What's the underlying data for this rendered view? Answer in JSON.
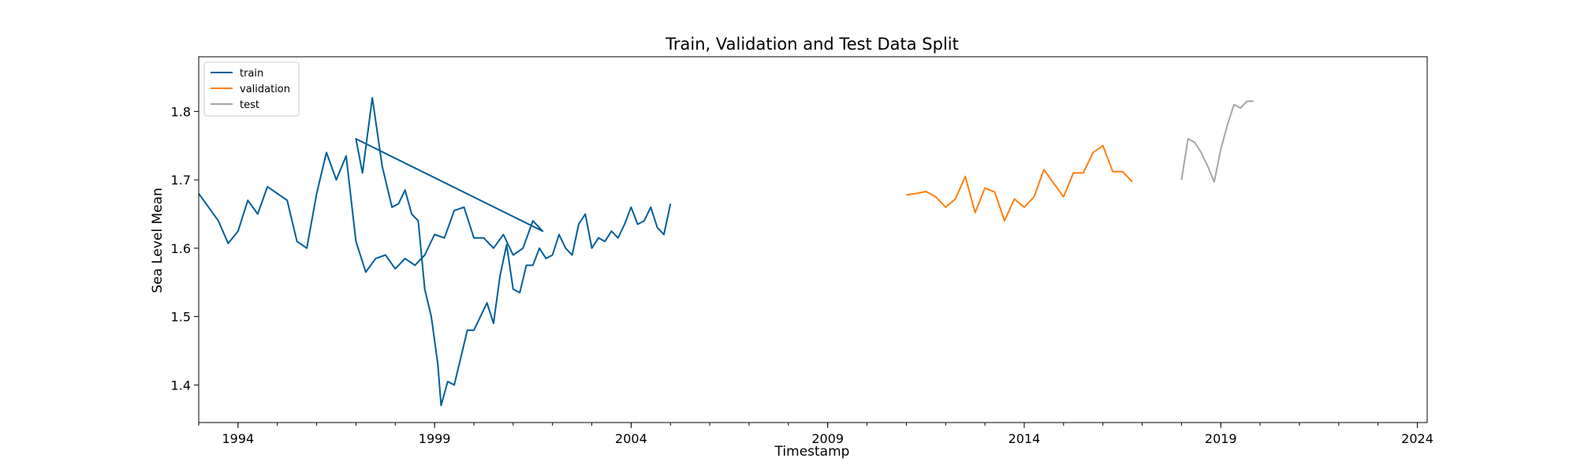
{
  "chart_data": {
    "type": "line",
    "title": "Train, Validation and Test Data Split",
    "xlabel": "Timestamp",
    "ylabel": "Sea Level Mean",
    "xlim": [
      "1993-01",
      "2024-04"
    ],
    "ylim": [
      1.345,
      1.88
    ],
    "grid": false,
    "legend_position": "top-left",
    "x_ticks": [
      "1994",
      "1999",
      "2004",
      "2009",
      "2014",
      "2019",
      "2024"
    ],
    "y_ticks": [
      "1.4",
      "1.5",
      "1.6",
      "1.7",
      "1.8"
    ],
    "series": [
      {
        "name": "train",
        "color": "#005f99",
        "points": [
          [
            "1993-01",
            1.68
          ],
          [
            "1993-04",
            1.66
          ],
          [
            "1993-07",
            1.64
          ],
          [
            "1993-10",
            1.607
          ],
          [
            "1994-01",
            1.625
          ],
          [
            "1994-04",
            1.67
          ],
          [
            "1994-07",
            1.65
          ],
          [
            "1994-10",
            1.69
          ],
          [
            "1995-01",
            1.68
          ],
          [
            "1995-04",
            1.67
          ],
          [
            "1995-07",
            1.61
          ],
          [
            "1995-10",
            1.6
          ],
          [
            "1996-01",
            1.68
          ],
          [
            "1996-04",
            1.74
          ],
          [
            "1996-07",
            1.7
          ],
          [
            "1996-10",
            1.735
          ],
          [
            "1997-01",
            1.61
          ],
          [
            "1997-04",
            1.565
          ],
          [
            "1997-07",
            1.585
          ],
          [
            "1997-10",
            1.59
          ],
          [
            "1998-01",
            1.57
          ],
          [
            "1998-04",
            1.585
          ],
          [
            "1998-07",
            1.575
          ],
          [
            "1998-10",
            1.59
          ],
          [
            "1999-01",
            1.62
          ],
          [
            "1999-04",
            1.615
          ],
          [
            "1999-07",
            1.655
          ],
          [
            "1999-10",
            1.66
          ],
          [
            "2000-01",
            1.615
          ],
          [
            "2000-04",
            1.615
          ],
          [
            "2000-07",
            1.6
          ],
          [
            "2000-10",
            1.62
          ],
          [
            "2001-01",
            1.59
          ],
          [
            "2001-04",
            1.6
          ],
          [
            "2001-07",
            1.64
          ],
          [
            "2001-10",
            1.625
          ],
          [
            "1997-01",
            1.76
          ],
          [
            "1997-03",
            1.71
          ],
          [
            "1997-06",
            1.82
          ],
          [
            "1997-09",
            1.72
          ],
          [
            "1997-12",
            1.66
          ],
          [
            "1998-02",
            1.665
          ],
          [
            "1998-04",
            1.685
          ],
          [
            "1998-06",
            1.65
          ],
          [
            "1998-08",
            1.64
          ],
          [
            "1998-10",
            1.54
          ],
          [
            "1998-12",
            1.5
          ],
          [
            "1999-02",
            1.43
          ],
          [
            "1999-03",
            1.37
          ],
          [
            "1999-05",
            1.405
          ],
          [
            "1999-07",
            1.4
          ],
          [
            "1999-09",
            1.44
          ],
          [
            "1999-11",
            1.48
          ],
          [
            "2000-01",
            1.48
          ],
          [
            "2000-03",
            1.5
          ],
          [
            "2000-05",
            1.52
          ],
          [
            "2000-07",
            1.49
          ],
          [
            "2000-09",
            1.56
          ],
          [
            "2000-11",
            1.605
          ],
          [
            "2001-01",
            1.54
          ],
          [
            "2001-03",
            1.535
          ],
          [
            "2001-05",
            1.575
          ],
          [
            "2001-07",
            1.575
          ],
          [
            "2001-09",
            1.6
          ],
          [
            "2001-11",
            1.585
          ],
          [
            "2002-01",
            1.59
          ],
          [
            "2002-03",
            1.62
          ],
          [
            "2002-05",
            1.6
          ],
          [
            "2002-07",
            1.59
          ],
          [
            "2002-09",
            1.635
          ],
          [
            "2002-11",
            1.65
          ],
          [
            "2003-01",
            1.6
          ],
          [
            "2003-03",
            1.615
          ],
          [
            "2003-05",
            1.61
          ],
          [
            "2003-07",
            1.625
          ],
          [
            "2003-09",
            1.615
          ],
          [
            "2003-11",
            1.635
          ],
          [
            "2004-01",
            1.66
          ],
          [
            "2004-03",
            1.635
          ],
          [
            "2004-05",
            1.64
          ],
          [
            "2004-07",
            1.66
          ],
          [
            "2004-09",
            1.63
          ],
          [
            "2004-11",
            1.62
          ],
          [
            "2005-01",
            1.665
          ]
        ]
      },
      {
        "name": "validation",
        "color": "#ff7f0e",
        "points": [
          [
            "2011-01",
            1.678
          ],
          [
            "2011-04",
            1.68
          ],
          [
            "2011-07",
            1.683
          ],
          [
            "2011-10",
            1.675
          ],
          [
            "2012-01",
            1.66
          ],
          [
            "2012-04",
            1.672
          ],
          [
            "2012-07",
            1.705
          ],
          [
            "2012-10",
            1.652
          ],
          [
            "2013-01",
            1.688
          ],
          [
            "2013-04",
            1.682
          ],
          [
            "2013-07",
            1.64
          ],
          [
            "2013-10",
            1.672
          ],
          [
            "2014-01",
            1.66
          ],
          [
            "2014-04",
            1.675
          ],
          [
            "2014-07",
            1.715
          ],
          [
            "2014-10",
            1.695
          ],
          [
            "2015-01",
            1.675
          ],
          [
            "2015-04",
            1.71
          ],
          [
            "2015-07",
            1.71
          ],
          [
            "2015-10",
            1.74
          ],
          [
            "2016-01",
            1.75
          ],
          [
            "2016-04",
            1.712
          ],
          [
            "2016-07",
            1.712
          ],
          [
            "2016-10",
            1.697
          ]
        ]
      },
      {
        "name": "test",
        "color": "#a6a6a6",
        "points": [
          [
            "2018-01",
            1.7
          ],
          [
            "2018-03",
            1.76
          ],
          [
            "2018-05",
            1.755
          ],
          [
            "2018-07",
            1.74
          ],
          [
            "2018-09",
            1.72
          ],
          [
            "2018-11",
            1.697
          ],
          [
            "2019-01",
            1.745
          ],
          [
            "2019-03",
            1.78
          ],
          [
            "2019-05",
            1.81
          ],
          [
            "2019-07",
            1.805
          ],
          [
            "2019-09",
            1.815
          ],
          [
            "2019-11",
            1.815
          ]
        ]
      }
    ]
  }
}
